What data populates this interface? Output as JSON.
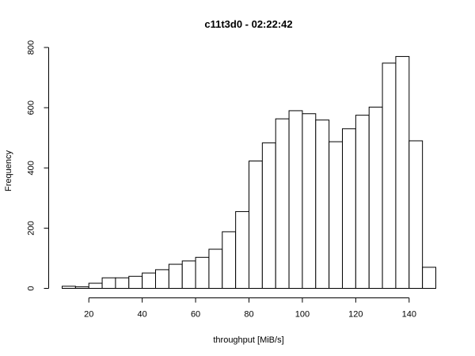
{
  "chart_data": {
    "type": "bar",
    "title": "c11t3d0 - 02:22:42",
    "xlabel": "throughput [MiB/s]",
    "ylabel": "Frequency",
    "bin_width": 5,
    "bins": [
      {
        "start": 10,
        "end": 15,
        "count": 7
      },
      {
        "start": 15,
        "end": 20,
        "count": 5
      },
      {
        "start": 20,
        "end": 25,
        "count": 17
      },
      {
        "start": 25,
        "end": 30,
        "count": 35
      },
      {
        "start": 30,
        "end": 35,
        "count": 35
      },
      {
        "start": 35,
        "end": 40,
        "count": 40
      },
      {
        "start": 40,
        "end": 45,
        "count": 51
      },
      {
        "start": 45,
        "end": 50,
        "count": 62
      },
      {
        "start": 50,
        "end": 55,
        "count": 80
      },
      {
        "start": 55,
        "end": 60,
        "count": 91
      },
      {
        "start": 60,
        "end": 65,
        "count": 103
      },
      {
        "start": 65,
        "end": 70,
        "count": 130
      },
      {
        "start": 70,
        "end": 75,
        "count": 188
      },
      {
        "start": 75,
        "end": 80,
        "count": 255
      },
      {
        "start": 80,
        "end": 85,
        "count": 423
      },
      {
        "start": 85,
        "end": 90,
        "count": 483
      },
      {
        "start": 90,
        "end": 95,
        "count": 563
      },
      {
        "start": 95,
        "end": 100,
        "count": 590
      },
      {
        "start": 100,
        "end": 105,
        "count": 580
      },
      {
        "start": 105,
        "end": 110,
        "count": 559
      },
      {
        "start": 110,
        "end": 115,
        "count": 487
      },
      {
        "start": 115,
        "end": 120,
        "count": 530
      },
      {
        "start": 120,
        "end": 125,
        "count": 575
      },
      {
        "start": 125,
        "end": 130,
        "count": 602
      },
      {
        "start": 130,
        "end": 135,
        "count": 748
      },
      {
        "start": 135,
        "end": 140,
        "count": 770
      },
      {
        "start": 140,
        "end": 145,
        "count": 490
      },
      {
        "start": 145,
        "end": 150,
        "count": 70
      }
    ],
    "xticks": [
      "20",
      "40",
      "60",
      "80",
      "100",
      "120",
      "140"
    ],
    "yticks": [
      "0",
      "200",
      "400",
      "600",
      "800"
    ],
    "xlim": [
      10,
      150
    ],
    "ylim": [
      0,
      800
    ],
    "grid": false,
    "legend": "none",
    "bar_fill": "#ffffff",
    "bar_stroke": "#000000"
  }
}
